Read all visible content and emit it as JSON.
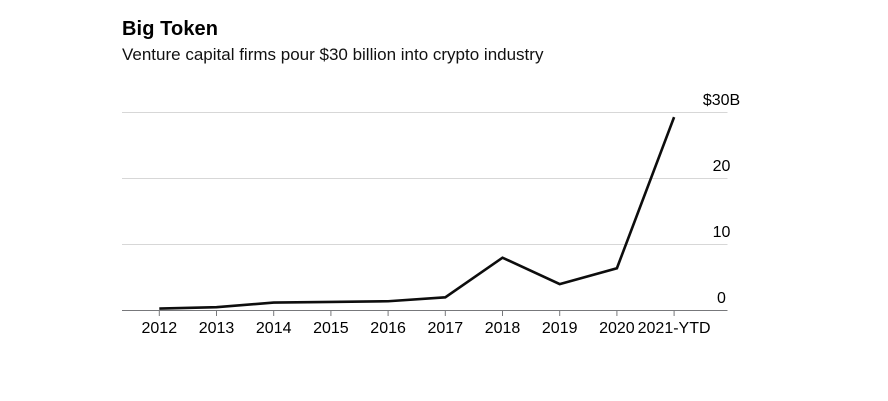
{
  "chart_data": {
    "type": "line",
    "title": "Big Token",
    "subtitle": "Venture capital firms pour $30 billion into crypto industry",
    "categories": [
      "2012",
      "2013",
      "2014",
      "2015",
      "2016",
      "2017",
      "2018",
      "2019",
      "2020",
      "2021-YTD"
    ],
    "values": [
      0.3,
      0.5,
      1.2,
      1.3,
      1.4,
      2.0,
      8.0,
      4.0,
      6.4,
      29.3
    ],
    "ylim": [
      0,
      30
    ],
    "yticks": [
      {
        "value": 0,
        "label": "0"
      },
      {
        "value": 10,
        "label": "10"
      },
      {
        "value": 20,
        "label": "20"
      },
      {
        "value": 30,
        "label": "$30B"
      }
    ],
    "grid": true,
    "legend": "none",
    "colors": {
      "line": "#0d0d0d",
      "grid": "#d7d7d7",
      "axis": "#77787b",
      "text": "#000000",
      "background": "#ffffff"
    }
  }
}
